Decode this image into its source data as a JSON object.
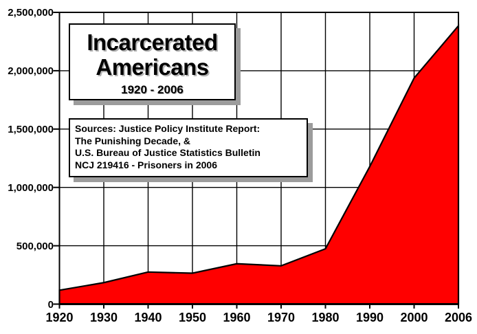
{
  "chart_data": {
    "type": "area",
    "title": "Incarcerated Americans",
    "period_label": "1920 - 2006",
    "source_lines": [
      "Sources: Justice Policy Institute Report:",
      "The Punishing Decade, &",
      "U.S. Bureau of Justice Statistics Bulletin",
      "NCJ 219416 - Prisoners in 2006"
    ],
    "categories": [
      "1920",
      "1930",
      "1940",
      "1950",
      "1960",
      "1970",
      "1980",
      "1990",
      "2000",
      "2006"
    ],
    "values": [
      119000,
      184000,
      275000,
      265000,
      346000,
      328000,
      474000,
      1179000,
      1937000,
      2385000
    ],
    "y_tick_labels": [
      "0",
      "500,000",
      "1,000,000",
      "1,500,000",
      "2,000,000",
      "2,500,000"
    ],
    "ylim": [
      0,
      2500000
    ],
    "y_tick_interval": 500000,
    "xlabel": "",
    "ylabel": "",
    "grid": true,
    "legend": "none",
    "fill_color": "#ff0000",
    "line_color": "#000000",
    "grid_color": "#000000",
    "background_color": "#ffffff",
    "shadow_color": "#9c9c9c"
  }
}
